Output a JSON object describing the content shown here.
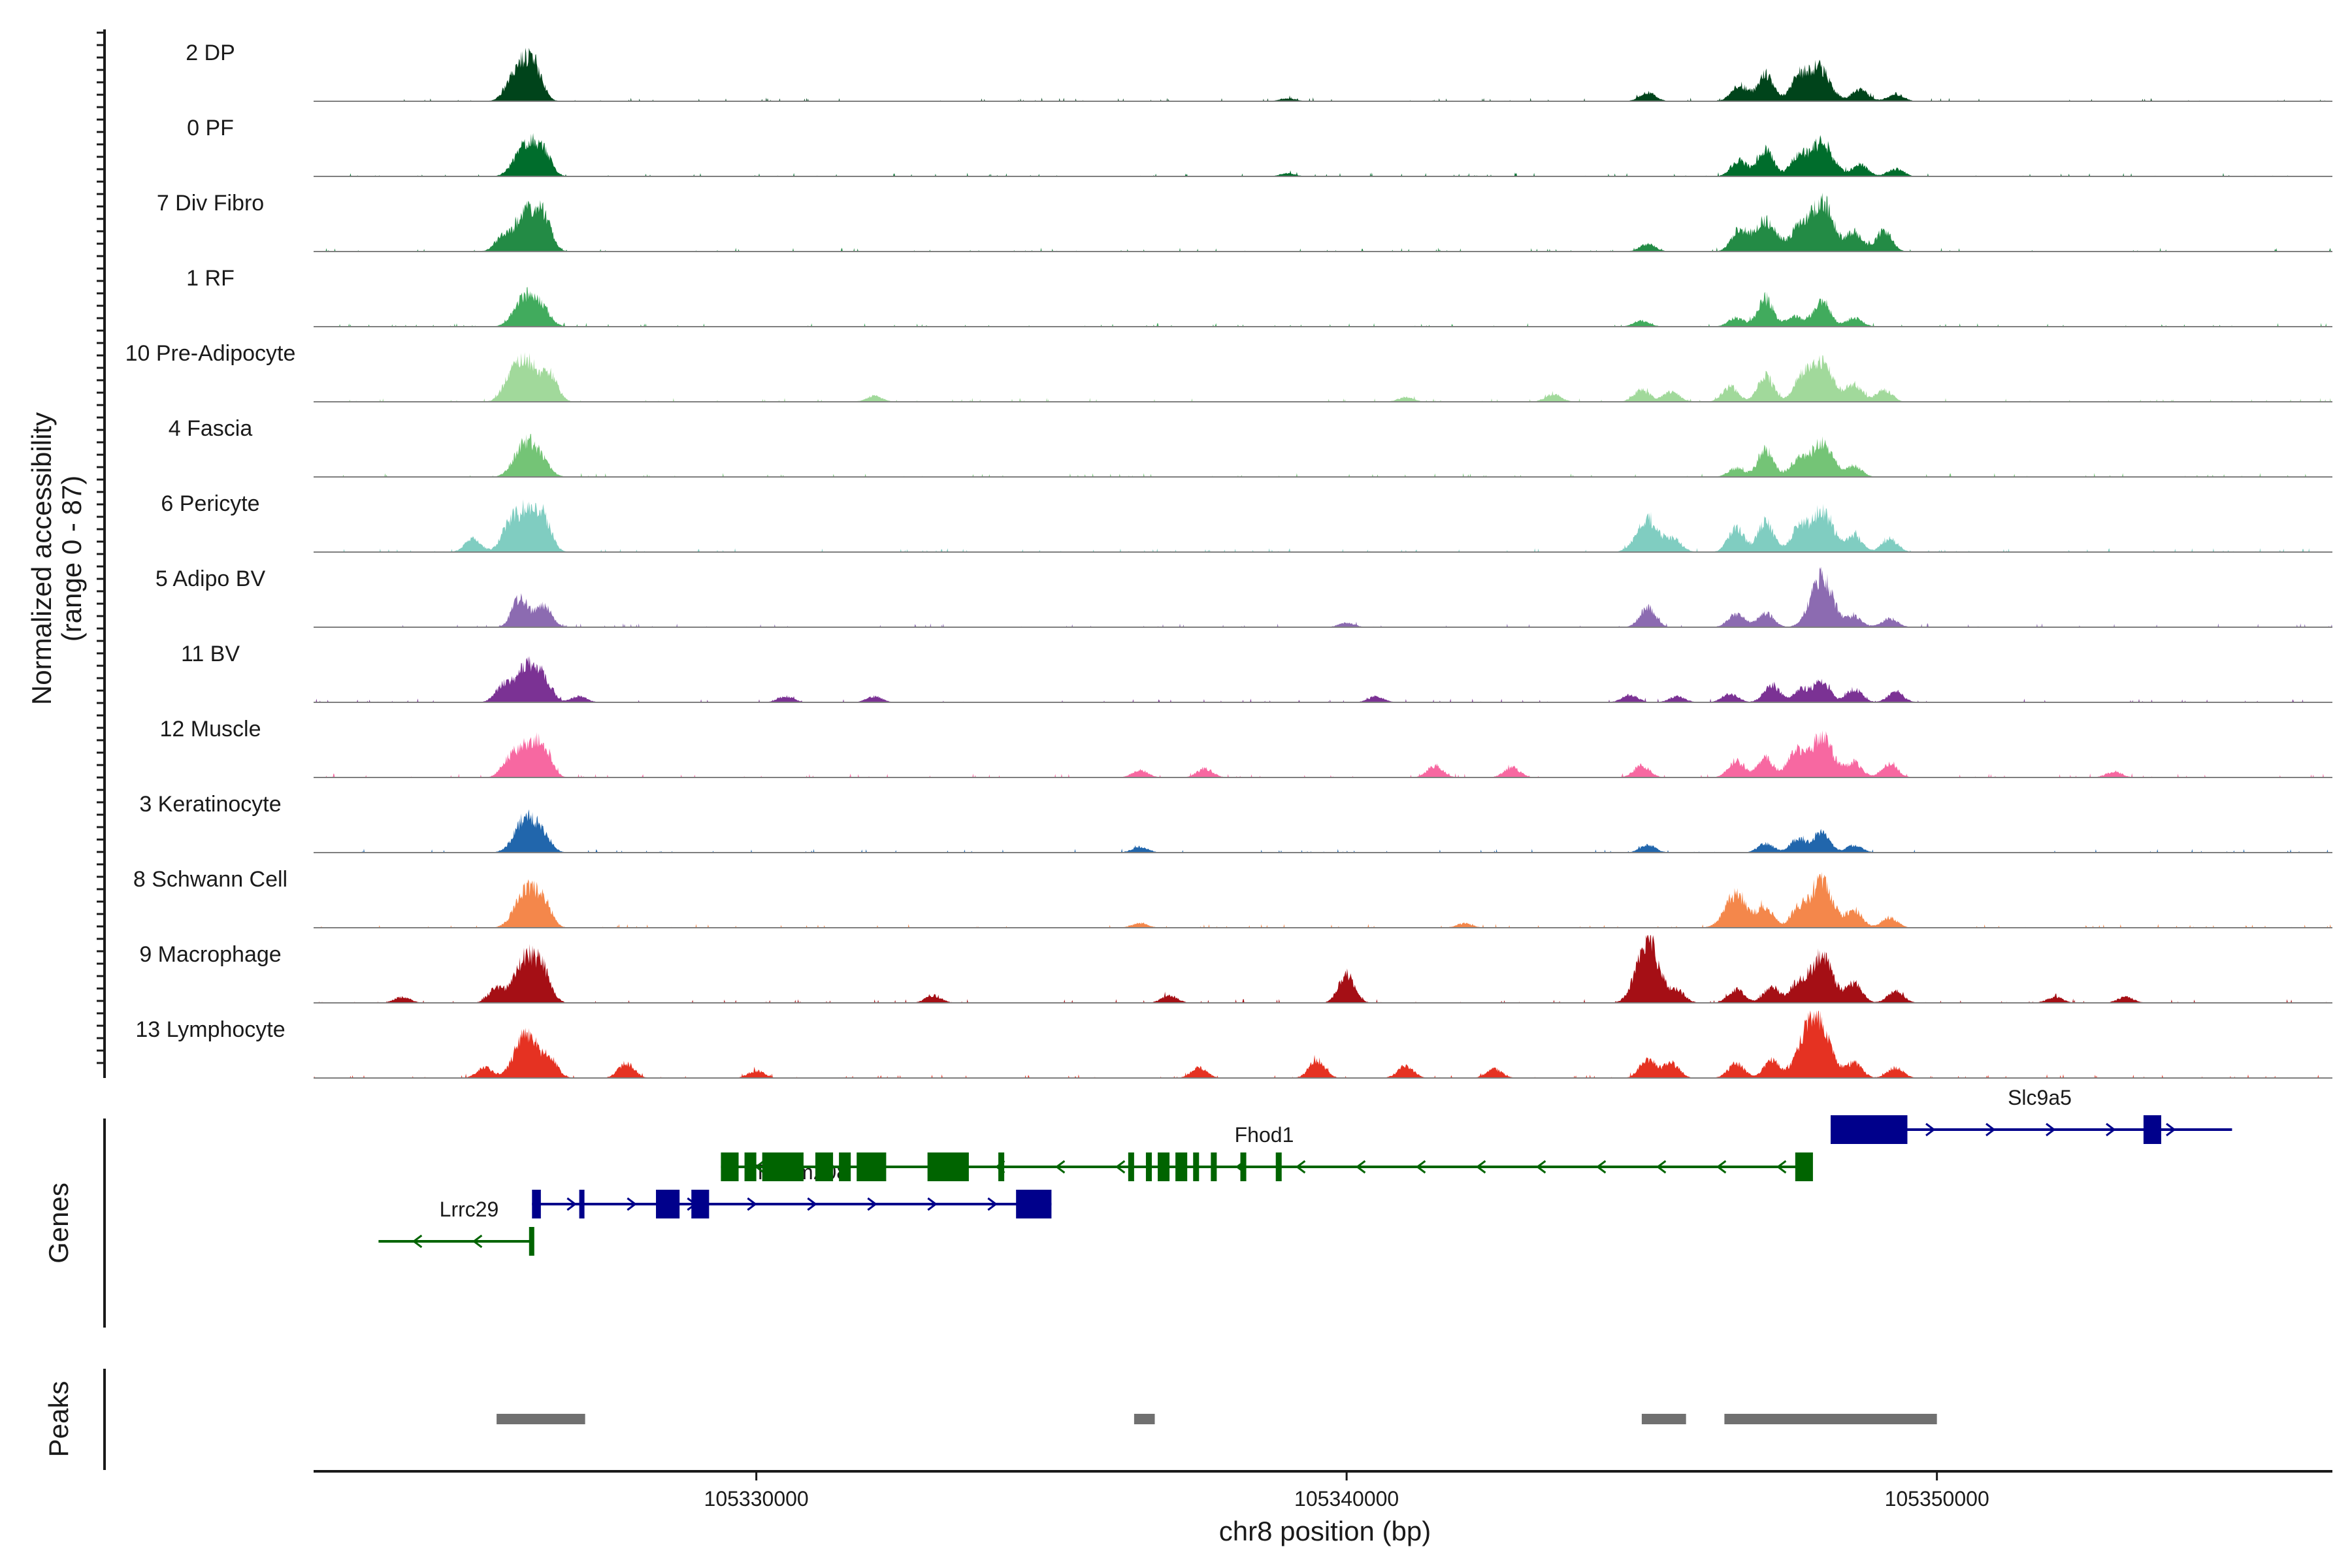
{
  "chart_data": {
    "type": "area",
    "title": "",
    "chromosome": "chr8",
    "xlabel": "chr8 position (bp)",
    "ylabel": "Normalized accessibility",
    "ylabel_range": "(range 0 - 87)",
    "y_range": [
      0,
      87
    ],
    "xlim": [
      105322500,
      105356700
    ],
    "x_ticks": [
      105330000,
      105340000,
      105350000
    ],
    "x_tick_labels": [
      "105330000",
      "105340000",
      "105350000"
    ],
    "series": [
      {
        "name": "2 DP",
        "color": "#00441b",
        "peaks": [
          [
            105326000,
            48
          ],
          [
            105326250,
            36
          ],
          [
            105345100,
            12
          ],
          [
            105346650,
            22
          ],
          [
            105347100,
            36
          ],
          [
            105347650,
            30
          ],
          [
            105348000,
            46
          ],
          [
            105348700,
            16
          ],
          [
            105349300,
            10
          ],
          [
            105339000,
            4
          ]
        ]
      },
      {
        "name": "0 PF",
        "color": "#006d2c",
        "peaks": [
          [
            105326100,
            45
          ],
          [
            105326400,
            28
          ],
          [
            105346650,
            22
          ],
          [
            105347100,
            36
          ],
          [
            105347650,
            26
          ],
          [
            105348050,
            46
          ],
          [
            105348700,
            16
          ],
          [
            105349300,
            10
          ],
          [
            105339000,
            4
          ]
        ]
      },
      {
        "name": "7 Div Fibro",
        "color": "#238b45",
        "peaks": [
          [
            105325700,
            18
          ],
          [
            105326100,
            52
          ],
          [
            105326400,
            40
          ],
          [
            105346650,
            28
          ],
          [
            105347100,
            42
          ],
          [
            105347650,
            30
          ],
          [
            105348050,
            70
          ],
          [
            105348600,
            26
          ],
          [
            105349100,
            28
          ],
          [
            105345100,
            10
          ]
        ]
      },
      {
        "name": "1 RF",
        "color": "#41ab5d",
        "peaks": [
          [
            105326100,
            42
          ],
          [
            105326400,
            18
          ],
          [
            105345000,
            8
          ],
          [
            105346600,
            12
          ],
          [
            105347100,
            36
          ],
          [
            105347600,
            14
          ],
          [
            105348050,
            36
          ],
          [
            105348600,
            12
          ]
        ]
      },
      {
        "name": "10 Pre-Adipocyte",
        "color": "#a1d99b",
        "peaks": [
          [
            105325800,
            20
          ],
          [
            105326100,
            55
          ],
          [
            105326500,
            34
          ],
          [
            105345000,
            16
          ],
          [
            105345500,
            14
          ],
          [
            105346500,
            20
          ],
          [
            105347100,
            34
          ],
          [
            105347700,
            30
          ],
          [
            105348050,
            52
          ],
          [
            105348600,
            24
          ],
          [
            105349100,
            16
          ],
          [
            105332000,
            8
          ],
          [
            105341000,
            6
          ],
          [
            105343500,
            10
          ]
        ]
      },
      {
        "name": "4 Fascia",
        "color": "#74c476",
        "peaks": [
          [
            105326100,
            48
          ],
          [
            105326400,
            14
          ],
          [
            105346600,
            12
          ],
          [
            105347100,
            36
          ],
          [
            105347650,
            22
          ],
          [
            105348050,
            46
          ],
          [
            105348600,
            14
          ]
        ]
      },
      {
        "name": "6 Pericyte",
        "color": "#80cdc1",
        "peaks": [
          [
            105325200,
            18
          ],
          [
            105325800,
            28
          ],
          [
            105326100,
            52
          ],
          [
            105326400,
            38
          ],
          [
            105345100,
            44
          ],
          [
            105345550,
            16
          ],
          [
            105346600,
            32
          ],
          [
            105347100,
            40
          ],
          [
            105347650,
            30
          ],
          [
            105348050,
            56
          ],
          [
            105348600,
            22
          ],
          [
            105349200,
            18
          ]
        ]
      },
      {
        "name": "5 Adipo BV",
        "color": "#8c6bb1",
        "peaks": [
          [
            105326000,
            40
          ],
          [
            105326400,
            28
          ],
          [
            105345100,
            26
          ],
          [
            105346600,
            18
          ],
          [
            105347100,
            20
          ],
          [
            105348050,
            68
          ],
          [
            105348600,
            14
          ],
          [
            105349200,
            12
          ],
          [
            105340000,
            6
          ]
        ]
      },
      {
        "name": "11 BV",
        "color": "#7b3294",
        "peaks": [
          [
            105325700,
            20
          ],
          [
            105326100,
            48
          ],
          [
            105326400,
            28
          ],
          [
            105327000,
            8
          ],
          [
            105330500,
            8
          ],
          [
            105332000,
            8
          ],
          [
            105340500,
            8
          ],
          [
            105344800,
            10
          ],
          [
            105345600,
            8
          ],
          [
            105346500,
            12
          ],
          [
            105347200,
            24
          ],
          [
            105347700,
            18
          ],
          [
            105348050,
            28
          ],
          [
            105348600,
            18
          ],
          [
            105349300,
            14
          ]
        ]
      },
      {
        "name": "12 Muscle",
        "color": "#f768a1",
        "peaks": [
          [
            105325800,
            16
          ],
          [
            105326100,
            42
          ],
          [
            105326400,
            36
          ],
          [
            105336500,
            10
          ],
          [
            105337600,
            12
          ],
          [
            105341500,
            16
          ],
          [
            105342800,
            14
          ],
          [
            105345000,
            16
          ],
          [
            105346600,
            22
          ],
          [
            105347100,
            26
          ],
          [
            105347600,
            34
          ],
          [
            105348050,
            56
          ],
          [
            105348600,
            20
          ],
          [
            105349200,
            18
          ],
          [
            105353000,
            8
          ]
        ]
      },
      {
        "name": "3 Keratinocyte",
        "color": "#2166ac",
        "peaks": [
          [
            105326100,
            48
          ],
          [
            105326400,
            18
          ],
          [
            105336500,
            8
          ],
          [
            105345100,
            10
          ],
          [
            105347100,
            12
          ],
          [
            105347650,
            18
          ],
          [
            105348050,
            28
          ],
          [
            105348600,
            10
          ]
        ]
      },
      {
        "name": "8 Schwann Cell",
        "color": "#f4874b",
        "peaks": [
          [
            105326100,
            50
          ],
          [
            105326400,
            30
          ],
          [
            105346600,
            46
          ],
          [
            105347100,
            28
          ],
          [
            105347650,
            24
          ],
          [
            105348050,
            62
          ],
          [
            105348600,
            24
          ],
          [
            105349200,
            14
          ],
          [
            105336500,
            6
          ],
          [
            105342000,
            6
          ]
        ]
      },
      {
        "name": "9 Macrophage",
        "color": "#a50f15",
        "peaks": [
          [
            105324000,
            8
          ],
          [
            105325600,
            20
          ],
          [
            105326100,
            62
          ],
          [
            105326400,
            34
          ],
          [
            105333000,
            10
          ],
          [
            105337000,
            10
          ],
          [
            105340000,
            38
          ],
          [
            105345100,
            87
          ],
          [
            105345600,
            16
          ],
          [
            105346600,
            18
          ],
          [
            105347200,
            22
          ],
          [
            105347650,
            26
          ],
          [
            105348050,
            64
          ],
          [
            105348600,
            26
          ],
          [
            105349300,
            16
          ],
          [
            105352000,
            8
          ],
          [
            105353200,
            8
          ]
        ]
      },
      {
        "name": "13 Lymphocyte",
        "color": "#e53222",
        "peaks": [
          [
            105325400,
            14
          ],
          [
            105326100,
            62
          ],
          [
            105326500,
            24
          ],
          [
            105327800,
            20
          ],
          [
            105330000,
            10
          ],
          [
            105337500,
            14
          ],
          [
            105339500,
            24
          ],
          [
            105341000,
            16
          ],
          [
            105342500,
            12
          ],
          [
            105345100,
            26
          ],
          [
            105345500,
            20
          ],
          [
            105346600,
            20
          ],
          [
            105347200,
            24
          ],
          [
            105347800,
            48
          ],
          [
            105348050,
            54
          ],
          [
            105348600,
            20
          ],
          [
            105349300,
            14
          ]
        ]
      }
    ],
    "genes": [
      {
        "name": "Lrrc29",
        "strand": "-",
        "color": "#006400",
        "start": 105323600,
        "end": 105326200,
        "row": 3,
        "exons": [
          [
            105326150,
            105326200
          ]
        ]
      },
      {
        "name": "Tmem208",
        "strand": "+",
        "color": "#00008b",
        "start": 105326200,
        "end": 105335000,
        "row": 2,
        "exons": [
          [
            105326200,
            105326350
          ],
          [
            105327000,
            105327050
          ],
          [
            105328300,
            105328700
          ],
          [
            105328900,
            105329200
          ],
          [
            105334400,
            105335000
          ]
        ]
      },
      {
        "name": "Fhod1",
        "strand": "-",
        "color": "#006400",
        "start": 105329400,
        "end": 105347800,
        "row": 1,
        "exons": [
          [
            105329400,
            105329700
          ],
          [
            105329800,
            105330000
          ],
          [
            105330100,
            105330800
          ],
          [
            105331000,
            105331300
          ],
          [
            105331400,
            105331600
          ],
          [
            105331700,
            105332200
          ],
          [
            105332900,
            105333600
          ],
          [
            105334100,
            105334200
          ],
          [
            105336300,
            105336400
          ],
          [
            105336600,
            105336700
          ],
          [
            105336800,
            105337000
          ],
          [
            105337100,
            105337300
          ],
          [
            105337400,
            105337500
          ],
          [
            105337700,
            105337800
          ],
          [
            105338200,
            105338300
          ],
          [
            105338800,
            105338900
          ],
          [
            105347600,
            105347900
          ]
        ]
      },
      {
        "name": "Slc9a5",
        "strand": "+",
        "color": "#00008b",
        "start": 105348200,
        "end": 105355000,
        "row": 0,
        "exons": [
          [
            105348200,
            105349500
          ],
          [
            105353500,
            105353800
          ]
        ]
      }
    ],
    "peaks_regions": [
      [
        105325600,
        105327100
      ],
      [
        105336400,
        105336750
      ],
      [
        105345000,
        105345750
      ],
      [
        105346400,
        105350000
      ]
    ],
    "panel_labels": [
      "Genes",
      "Peaks"
    ]
  }
}
